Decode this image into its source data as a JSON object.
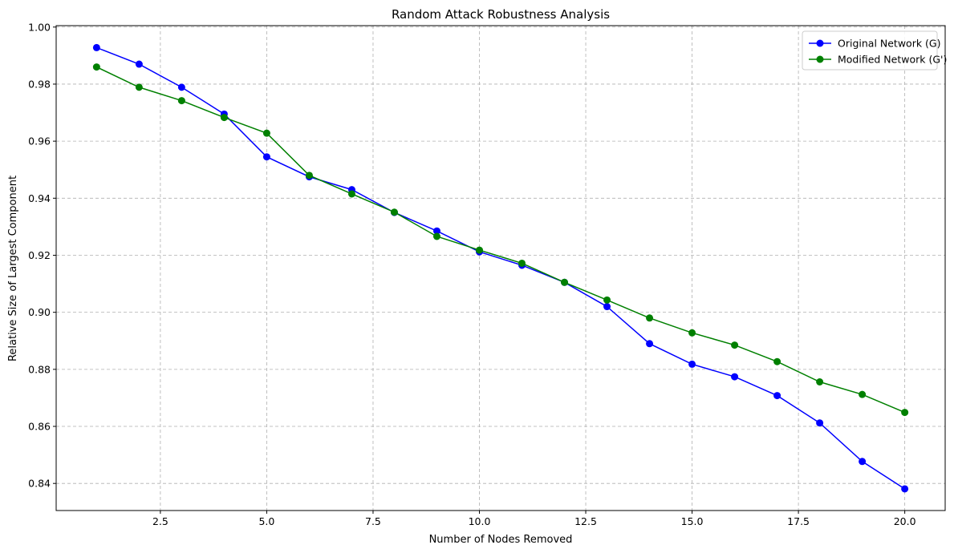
{
  "chart_data": {
    "type": "line",
    "title": "Random Attack Robustness Analysis",
    "xlabel": "Number of Nodes Removed",
    "ylabel": "Relative Size of Largest Component",
    "xlim": [
      0.05,
      20.95
    ],
    "ylim": [
      0.8305,
      1.0005
    ],
    "xticks": [
      2.5,
      5.0,
      7.5,
      10.0,
      12.5,
      15.0,
      17.5,
      20.0
    ],
    "xtick_labels": [
      "2.5",
      "5.0",
      "7.5",
      "10.0",
      "12.5",
      "15.0",
      "17.5",
      "20.0"
    ],
    "yticks": [
      0.84,
      0.86,
      0.88,
      0.9,
      0.92,
      0.94,
      0.96,
      0.98,
      1.0
    ],
    "ytick_labels": [
      "0.84",
      "0.86",
      "0.88",
      "0.90",
      "0.92",
      "0.94",
      "0.96",
      "0.98",
      "1.00"
    ],
    "grid": true,
    "grid_style": "dashed",
    "legend_position": "top-right",
    "x": [
      1,
      2,
      3,
      4,
      5,
      6,
      7,
      8,
      9,
      10,
      11,
      12,
      13,
      14,
      15,
      16,
      17,
      18,
      19,
      20
    ],
    "series": [
      {
        "name": "Original Network (G)",
        "color": "#0000ff",
        "marker": "circle",
        "values": [
          0.9928,
          0.987,
          0.9789,
          0.9695,
          0.9545,
          0.9475,
          0.943,
          0.935,
          0.9285,
          0.9212,
          0.9165,
          0.9105,
          0.902,
          0.889,
          0.8818,
          0.8774,
          0.8708,
          0.8612,
          0.8477,
          0.8381
        ]
      },
      {
        "name": "Modified Network (G')",
        "color": "#008000",
        "marker": "circle",
        "values": [
          0.986,
          0.9789,
          0.9742,
          0.9683,
          0.9628,
          0.948,
          0.9415,
          0.9351,
          0.9266,
          0.9218,
          0.9172,
          0.9105,
          0.9043,
          0.898,
          0.8928,
          0.8885,
          0.8827,
          0.8756,
          0.8712,
          0.8649
        ]
      }
    ]
  }
}
